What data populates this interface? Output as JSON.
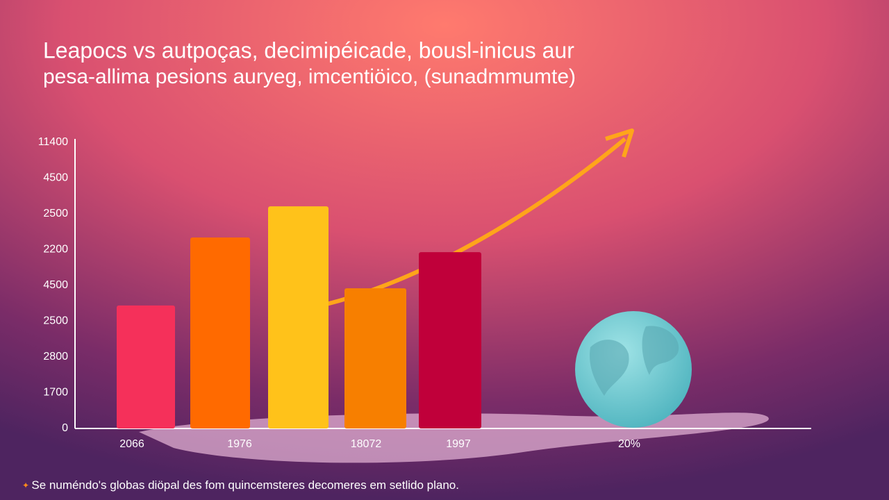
{
  "chart_data": {
    "type": "bar",
    "title": [
      "Leapocs vs autpoças, decimipéicade, bousl-inicus aur",
      "pesa-allima pesions auryeg, imcentiöico, (sunadmmumte)"
    ],
    "categories": [
      "2066",
      "1976",
      null,
      "18072",
      "1997"
    ],
    "values": [
      3.44,
      5.34,
      6.21,
      3.92,
      4.93
    ],
    "colors": [
      "#f5305a",
      "#ff6a00",
      "#ffc21a",
      "#f77f00",
      "#c0003a"
    ],
    "ylim": [
      0,
      8
    ],
    "yticks": [
      0,
      {
        "value": 1,
        "label": "1700"
      },
      {
        "value": 2,
        "label": "2800"
      },
      {
        "value": 3,
        "label": "2500"
      },
      {
        "value": 4,
        "label": "4500"
      },
      {
        "value": 5,
        "label": "2200"
      },
      {
        "value": 6,
        "label": "2500"
      },
      {
        "value": 7,
        "label": "4500"
      },
      {
        "value": 8,
        "label": "11400"
      }
    ],
    "annotation": "20%",
    "footnote": "Se numéndo's globas diöpal des fom quincemsteres decomeres em setlido plano."
  }
}
